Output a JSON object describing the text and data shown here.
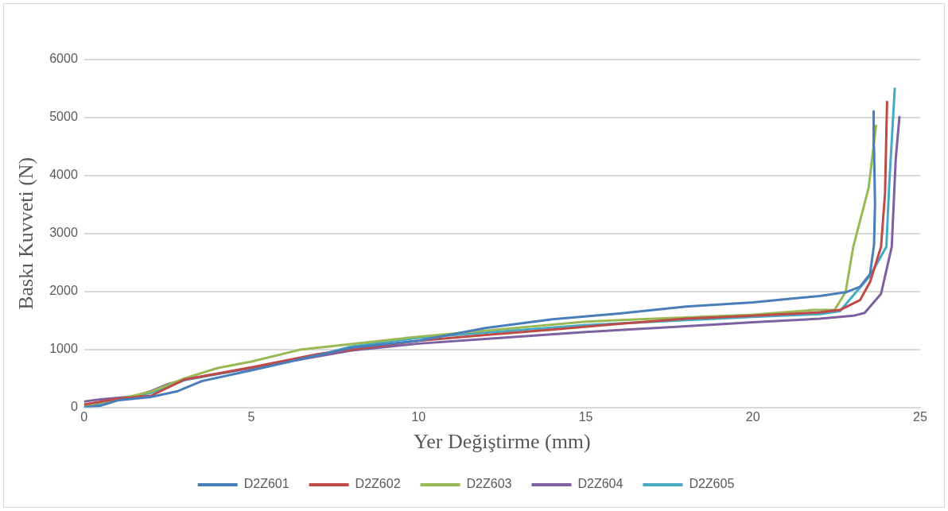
{
  "chart_data": {
    "type": "line",
    "xlabel": "Yer Değiştirme (mm)",
    "ylabel": "Baskı Kuvveti (N)",
    "xlim": [
      0,
      25
    ],
    "xticks": [
      0,
      5,
      10,
      15,
      20,
      25
    ],
    "ylim": [
      0,
      6000
    ],
    "yticks": [
      0,
      1000,
      2000,
      3000,
      4000,
      5000,
      6000
    ],
    "grid": "y",
    "legend": "bottom",
    "marker": "none",
    "line_style": "solid",
    "series": [
      {
        "name": "D2Z601",
        "color": "#4a7ebb",
        "x": [
          0,
          0.5,
          1,
          2,
          2.8,
          3.5,
          5,
          7,
          8,
          10,
          12,
          14,
          16,
          18,
          20,
          21.4,
          22,
          22.8,
          23.2,
          23.5,
          23.62,
          23.65,
          23.62,
          23.61
        ],
        "values": [
          0,
          30,
          120,
          180,
          280,
          450,
          640,
          900,
          1030,
          1150,
          1370,
          1520,
          1620,
          1740,
          1810,
          1890,
          1920,
          1990,
          2080,
          2300,
          2800,
          3500,
          4500,
          5110
        ]
      },
      {
        "name": "D2Z602",
        "color": "#be4b48",
        "x": [
          0,
          1,
          2,
          3,
          5,
          7,
          10,
          12,
          14,
          16,
          18,
          20,
          22,
          22.6,
          23.2,
          23.5,
          23.83,
          23.95,
          24.01
        ],
        "values": [
          50,
          150,
          200,
          480,
          690,
          920,
          1150,
          1250,
          1340,
          1440,
          1530,
          1580,
          1640,
          1680,
          1850,
          2160,
          2770,
          3700,
          5270
        ]
      },
      {
        "name": "D2Z603",
        "color": "#98b954",
        "x": [
          0,
          1,
          2,
          3,
          4,
          5,
          6.5,
          10,
          15,
          20,
          21.8,
          22.44,
          22.77,
          23,
          23.46,
          23.68
        ],
        "values": [
          30,
          140,
          270,
          500,
          680,
          790,
          1000,
          1220,
          1480,
          1600,
          1680,
          1680,
          1990,
          2770,
          3790,
          4860
        ]
      },
      {
        "name": "D2Z604",
        "color": "#7d60a0",
        "x": [
          0,
          0.5,
          1.5,
          2,
          2.5,
          3,
          5,
          8,
          10,
          12,
          15,
          18,
          20,
          22,
          23,
          23.34,
          23.83,
          24.15,
          24.27,
          24.38
        ],
        "values": [
          100,
          140,
          190,
          280,
          400,
          480,
          680,
          980,
          1100,
          1180,
          1300,
          1400,
          1470,
          1530,
          1580,
          1630,
          1960,
          2770,
          4290,
          5010
        ]
      },
      {
        "name": "D2Z605",
        "color": "#46aac5",
        "x": [
          0,
          1,
          2,
          3,
          5,
          7,
          8,
          10,
          15,
          20,
          22,
          22.6,
          23.5,
          23.99,
          24.07,
          24.24
        ],
        "values": [
          0,
          130,
          250,
          470,
          680,
          900,
          1050,
          1200,
          1420,
          1560,
          1610,
          1660,
          2270,
          2770,
          3790,
          5500
        ]
      }
    ]
  }
}
